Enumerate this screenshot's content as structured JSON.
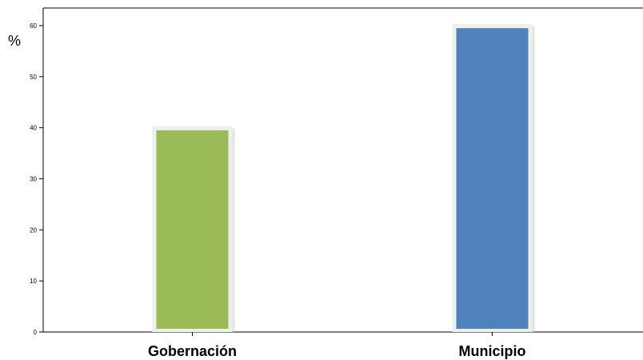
{
  "chart_data": {
    "type": "bar",
    "title": "",
    "xlabel": "",
    "ylabel": "%",
    "categories": [
      "Gobernación",
      "Municipio"
    ],
    "values": [
      39.5,
      59.5
    ],
    "colors": [
      "#9bbb59",
      "#4f81bd"
    ],
    "ylim": [
      0,
      60
    ],
    "yticks": [
      "0",
      "10",
      "20",
      "30",
      "40",
      "50",
      "60"
    ],
    "grid": false,
    "legend": "none"
  }
}
